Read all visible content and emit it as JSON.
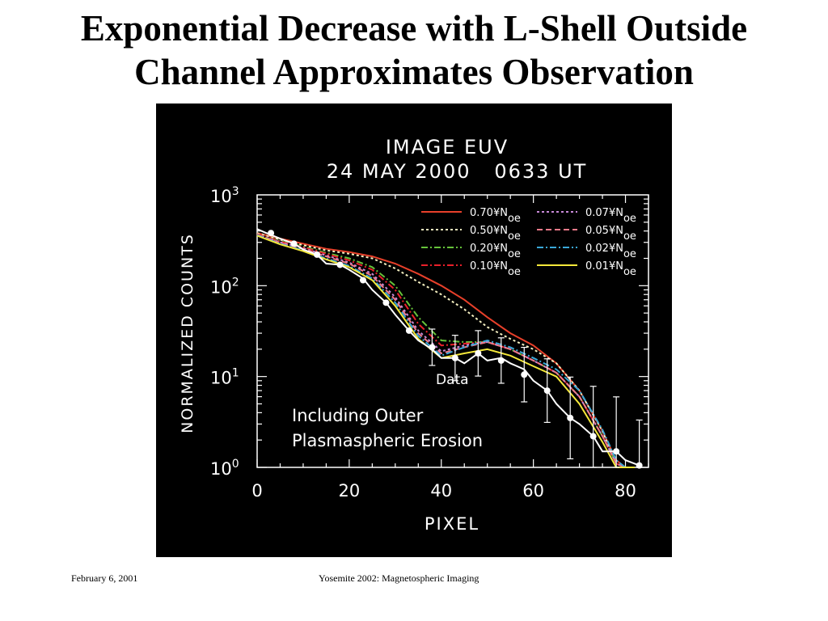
{
  "slide": {
    "title_line1": "Exponential Decrease with L-Shell Outside",
    "title_line2": "Channel Approximates Observation",
    "footer_date": "February 6, 2001",
    "footer_center": "Yosemite 2002: Magnetospheric Imaging"
  },
  "chart_data": {
    "type": "line",
    "title_line1": "IMAGE EUV",
    "title_line2": "24 MAY 2000   0633 UT",
    "xlabel": "PIXEL",
    "ylabel": "NORMALIZED COUNTS",
    "xlim": [
      0,
      85
    ],
    "ylim": [
      1,
      1000
    ],
    "yscale": "log",
    "xticks": [
      0,
      20,
      40,
      60,
      80
    ],
    "yticks": [
      {
        "value": 1,
        "base": "10",
        "exp": "0"
      },
      {
        "value": 10,
        "base": "10",
        "exp": "1"
      },
      {
        "value": 100,
        "base": "10",
        "exp": "2"
      },
      {
        "value": 1000,
        "base": "10",
        "exp": "3"
      }
    ],
    "background": "#000000",
    "legend_position": "top-right",
    "annotation_lines": [
      "Including Outer",
      "Plasmaspheric Erosion"
    ],
    "data_label": "Data",
    "series": [
      {
        "name": "0.70¥N",
        "sub": "oe",
        "color": "#e8402a",
        "dash": "solid",
        "x": [
          0,
          5,
          10,
          15,
          20,
          25,
          30,
          35,
          40,
          45,
          50,
          55,
          60,
          65,
          70,
          75,
          78,
          80,
          82
        ],
        "y": [
          380,
          330,
          290,
          255,
          235,
          210,
          175,
          135,
          100,
          70,
          45,
          30,
          22,
          14,
          7,
          2.5,
          1.2,
          1.0,
          1.0
        ]
      },
      {
        "name": "0.50¥N",
        "sub": "oe",
        "color": "#f4efc0",
        "dash": "3,3",
        "x": [
          0,
          5,
          10,
          15,
          20,
          25,
          30,
          35,
          40,
          45,
          50,
          55,
          60,
          65,
          70,
          75,
          78,
          80,
          82
        ],
        "y": [
          380,
          320,
          280,
          245,
          225,
          200,
          155,
          110,
          80,
          55,
          35,
          26,
          20,
          14,
          7,
          2.5,
          1.1,
          1.0,
          1.0
        ]
      },
      {
        "name": "0.20¥N",
        "sub": "oe",
        "color": "#66c23a",
        "dash": "8,3,2,3",
        "x": [
          0,
          5,
          10,
          15,
          20,
          25,
          30,
          35,
          40,
          45,
          50,
          55,
          60,
          65,
          70,
          75,
          78,
          80,
          82
        ],
        "y": [
          370,
          310,
          270,
          230,
          200,
          160,
          100,
          45,
          25,
          24,
          24,
          20,
          15,
          11,
          6,
          2.2,
          1.1,
          1.0,
          1.0
        ]
      },
      {
        "name": "0.10¥N",
        "sub": "oe",
        "color": "#e8202a",
        "dash": "8,3,2,3",
        "x": [
          0,
          5,
          10,
          15,
          20,
          25,
          30,
          35,
          40,
          45,
          50,
          55,
          60,
          65,
          70,
          75,
          78,
          80,
          82
        ],
        "y": [
          370,
          305,
          265,
          225,
          190,
          150,
          90,
          38,
          22,
          23,
          24,
          20,
          15,
          11,
          6,
          2.2,
          1.1,
          1.0,
          1.0
        ]
      },
      {
        "name": "0.07¥N",
        "sub": "oe",
        "color": "#c88ad8",
        "dash": "3,3",
        "x": [
          0,
          5,
          10,
          15,
          20,
          25,
          30,
          35,
          40,
          45,
          50,
          55,
          60,
          65,
          70,
          75,
          78,
          80,
          82
        ],
        "y": [
          365,
          300,
          260,
          215,
          180,
          135,
          75,
          32,
          19,
          22,
          24,
          20,
          15,
          11,
          6,
          2.2,
          1.1,
          1.0,
          1.0
        ]
      },
      {
        "name": "0.05¥N",
        "sub": "oe",
        "color": "#f07a8a",
        "dash": "7,4",
        "x": [
          0,
          5,
          10,
          15,
          20,
          25,
          30,
          35,
          40,
          45,
          50,
          55,
          60,
          65,
          70,
          75,
          78,
          80,
          82
        ],
        "y": [
          365,
          295,
          255,
          210,
          175,
          128,
          70,
          30,
          18,
          21,
          24,
          20,
          15,
          11,
          6,
          2.2,
          1.1,
          1.0,
          1.0
        ]
      },
      {
        "name": "0.02¥N",
        "sub": "oe",
        "color": "#3aa8d8",
        "dash": "8,3,2,3",
        "x": [
          0,
          5,
          10,
          15,
          20,
          25,
          30,
          35,
          40,
          45,
          50,
          55,
          60,
          65,
          70,
          75,
          78,
          80,
          82
        ],
        "y": [
          360,
          290,
          245,
          200,
          165,
          120,
          65,
          28,
          17,
          21,
          25,
          21,
          16,
          12,
          7,
          2.6,
          1.2,
          1.0,
          1.0
        ]
      },
      {
        "name": "0.01¥N",
        "sub": "oe",
        "color": "#f4e83a",
        "dash": "solid",
        "x": [
          0,
          5,
          10,
          15,
          20,
          25,
          30,
          35,
          40,
          45,
          50,
          55,
          60,
          65,
          70,
          75,
          78,
          80,
          82
        ],
        "y": [
          355,
          285,
          240,
          195,
          160,
          115,
          60,
          26,
          16,
          18,
          20,
          17,
          13,
          10,
          5,
          1.9,
          1.0,
          1.0,
          1.0
        ]
      }
    ],
    "data_points": {
      "name": "Data",
      "color": "#ffffff",
      "x": [
        0,
        2,
        5,
        8,
        10,
        13,
        15,
        18,
        20,
        23,
        25,
        28,
        30,
        33,
        35,
        38,
        40,
        43,
        45,
        48,
        50,
        53,
        55,
        58,
        60,
        63,
        65,
        68,
        70,
        73,
        75,
        78,
        80,
        83
      ],
      "y": [
        420,
        380,
        330,
        290,
        250,
        220,
        175,
        170,
        150,
        120,
        90,
        65,
        48,
        32,
        25,
        20,
        16,
        16,
        14,
        18,
        15,
        16,
        14,
        12,
        9,
        7,
        5,
        3.5,
        3,
        2.2,
        1.5,
        1.5,
        1.2,
        1.05
      ],
      "markers": [
        {
          "x": 3,
          "y": 380,
          "err": 0
        },
        {
          "x": 8,
          "y": 290,
          "err": 0
        },
        {
          "x": 13,
          "y": 220,
          "err": 0
        },
        {
          "x": 18,
          "y": 170,
          "err": 0
        },
        {
          "x": 23,
          "y": 115,
          "err": 0
        },
        {
          "x": 28,
          "y": 65,
          "err": 0
        },
        {
          "x": 33,
          "y": 32,
          "err": 0
        },
        {
          "x": 38,
          "y": 21,
          "err": 0.2
        },
        {
          "x": 43,
          "y": 16,
          "err": 0.25
        },
        {
          "x": 48,
          "y": 18,
          "err": 0.25
        },
        {
          "x": 53,
          "y": 15,
          "err": 0.25
        },
        {
          "x": 58,
          "y": 10.5,
          "err": 0.3
        },
        {
          "x": 63,
          "y": 7,
          "err": 0.35
        },
        {
          "x": 68,
          "y": 3.5,
          "err": 0.45
        },
        {
          "x": 73,
          "y": 2.2,
          "err": 0.55
        },
        {
          "x": 78,
          "y": 1.5,
          "err": 0.6
        },
        {
          "x": 83,
          "y": 1.05,
          "err": 0.5
        }
      ]
    }
  }
}
